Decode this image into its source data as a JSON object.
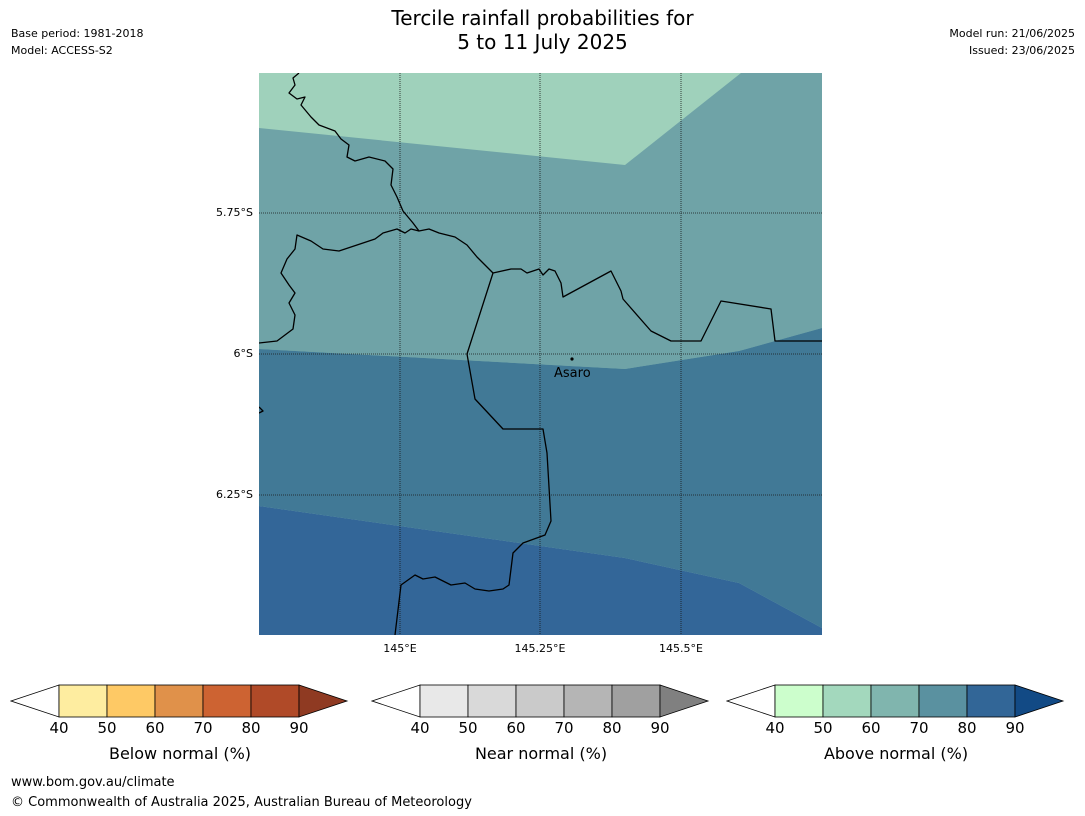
{
  "header": {
    "title_line1": "Tercile rainfall probabilities for",
    "title_line2": "5 to 11 July 2025",
    "base_period": "Base period: 1981-2018",
    "model": "Model: ACCESS-S2",
    "model_run": "Model run: 21/06/2025",
    "issued": "Issued: 23/06/2025"
  },
  "map": {
    "lat_labels": [
      "5.75°S",
      "6°S",
      "6.25°S"
    ],
    "lon_labels": [
      "145°E",
      "145.25°E",
      "145.5°E"
    ],
    "place": {
      "name": "Asaro",
      "lat": -5.99,
      "lon": 145.29
    },
    "zones": [
      {
        "category": "Above normal",
        "band": "50-60",
        "color": "#9fd1bb"
      },
      {
        "category": "Above normal",
        "band": "60-70",
        "color": "#6fa3a7"
      },
      {
        "category": "Above normal",
        "band": "70-80",
        "color": "#417996"
      },
      {
        "category": "Above normal",
        "band": "80-90",
        "color": "#336698"
      }
    ]
  },
  "legends": [
    {
      "label": "Below normal (%)",
      "ticks": [
        "40",
        "50",
        "60",
        "70",
        "80",
        "90"
      ],
      "colors": [
        "#ffffff",
        "#feeda0",
        "#fec965",
        "#e0914a",
        "#cd6332",
        "#b04a28",
        "#8f3a22"
      ]
    },
    {
      "label": "Near normal (%)",
      "ticks": [
        "40",
        "50",
        "60",
        "70",
        "80",
        "90"
      ],
      "colors": [
        "#ffffff",
        "#e8e8e8",
        "#d9d9d9",
        "#cacaca",
        "#b5b5b5",
        "#a0a0a0",
        "#808080"
      ]
    },
    {
      "label": "Above normal (%)",
      "ticks": [
        "40",
        "50",
        "60",
        "70",
        "80",
        "90"
      ],
      "colors": [
        "#ffffff",
        "#ccfecc",
        "#a3d8bd",
        "#80b5ae",
        "#5a91a0",
        "#326697",
        "#124a85"
      ]
    }
  ],
  "footer": {
    "url": "www.bom.gov.au/climate",
    "copyright": "© Commonwealth of Australia 2025, Australian Bureau of Meteorology"
  }
}
